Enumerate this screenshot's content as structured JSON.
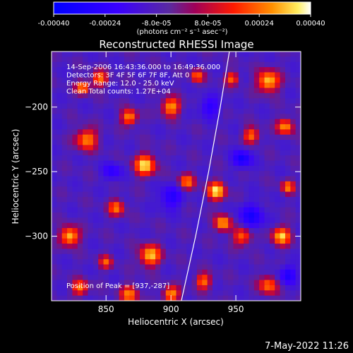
{
  "chart_data": {
    "type": "heatmap",
    "title": "Reconstructed RHESSI Image",
    "colorbar": {
      "ticks": [
        "-0.00040",
        "-0.00024",
        "-8.0e-05",
        "8.0e-05",
        "0.00024",
        "0.00040"
      ],
      "min": -0.0004,
      "max": 0.0004,
      "unit_label": "(photons cm⁻² s⁻¹ asec⁻²)"
    },
    "xlabel": "Heliocentric X (arcsec)",
    "ylabel": "Heliocentric Y (arcsec)",
    "x_ticks": [
      850,
      900,
      950
    ],
    "y_ticks": [
      -200,
      -250,
      -300
    ],
    "xlim": [
      808,
      1000
    ],
    "ylim": [
      -350,
      -157
    ],
    "annotations": [
      "14-Sep-2006 16:43:36.000 to 16:49:36.000",
      "Detectors: 3F 4F 5F 6F 7F 8F, Att 0",
      "Energy Range: 12.0 - 25.0 keV",
      "Clean     Total counts: 1.27E+04"
    ],
    "peak_label": "Position of Peak = [937,-287]",
    "peak": [
      937,
      -287
    ],
    "limb_curve": [
      [
        908,
        -350
      ],
      [
        919,
        -300
      ],
      [
        929,
        -250
      ],
      [
        938,
        -200
      ],
      [
        945,
        -157
      ]
    ],
    "blobs": [
      [
        822,
        -300,
        0.0004,
        7
      ],
      [
        835,
        -225,
        0.00033,
        8
      ],
      [
        845,
        -178,
        0.0003,
        6
      ],
      [
        868,
        -208,
        0.00034,
        6
      ],
      [
        880,
        -245,
        0.0004,
        8
      ],
      [
        900,
        -200,
        0.00035,
        7
      ],
      [
        884,
        -315,
        0.00038,
        8
      ],
      [
        868,
        -345,
        0.0003,
        7
      ],
      [
        912,
        -258,
        0.0003,
        6
      ],
      [
        935,
        -265,
        0.0004,
        7
      ],
      [
        940,
        -290,
        0.00038,
        6
      ],
      [
        955,
        -300,
        0.0003,
        7
      ],
      [
        962,
        -222,
        0.0003,
        6
      ],
      [
        975,
        -180,
        0.0004,
        8
      ],
      [
        988,
        -215,
        0.00035,
        6
      ],
      [
        985,
        -300,
        0.00038,
        7
      ],
      [
        975,
        -338,
        0.0003,
        7
      ],
      [
        925,
        -335,
        0.0003,
        6
      ],
      [
        947,
        -178,
        0.00028,
        5
      ],
      [
        900,
        -345,
        0.00035,
        6
      ],
      [
        830,
        -340,
        0.0003,
        6
      ],
      [
        858,
        -278,
        0.0003,
        6
      ],
      [
        832,
        -185,
        0.00035,
        5
      ],
      [
        920,
        -176,
        0.00028,
        5
      ],
      [
        990,
        -262,
        0.0003,
        5
      ],
      [
        850,
        -320,
        0.00025,
        5
      ]
    ],
    "cold_spots": [
      [
        962,
        -285,
        -0.00024,
        10
      ],
      [
        930,
        -200,
        -0.0002,
        8
      ],
      [
        900,
        -270,
        -0.00022,
        9
      ],
      [
        990,
        -330,
        -0.00024,
        7
      ],
      [
        855,
        -250,
        -0.0002,
        7
      ],
      [
        955,
        -240,
        -0.00028,
        7
      ]
    ]
  },
  "footer": {
    "timestamp": "7-May-2022 11:26"
  }
}
